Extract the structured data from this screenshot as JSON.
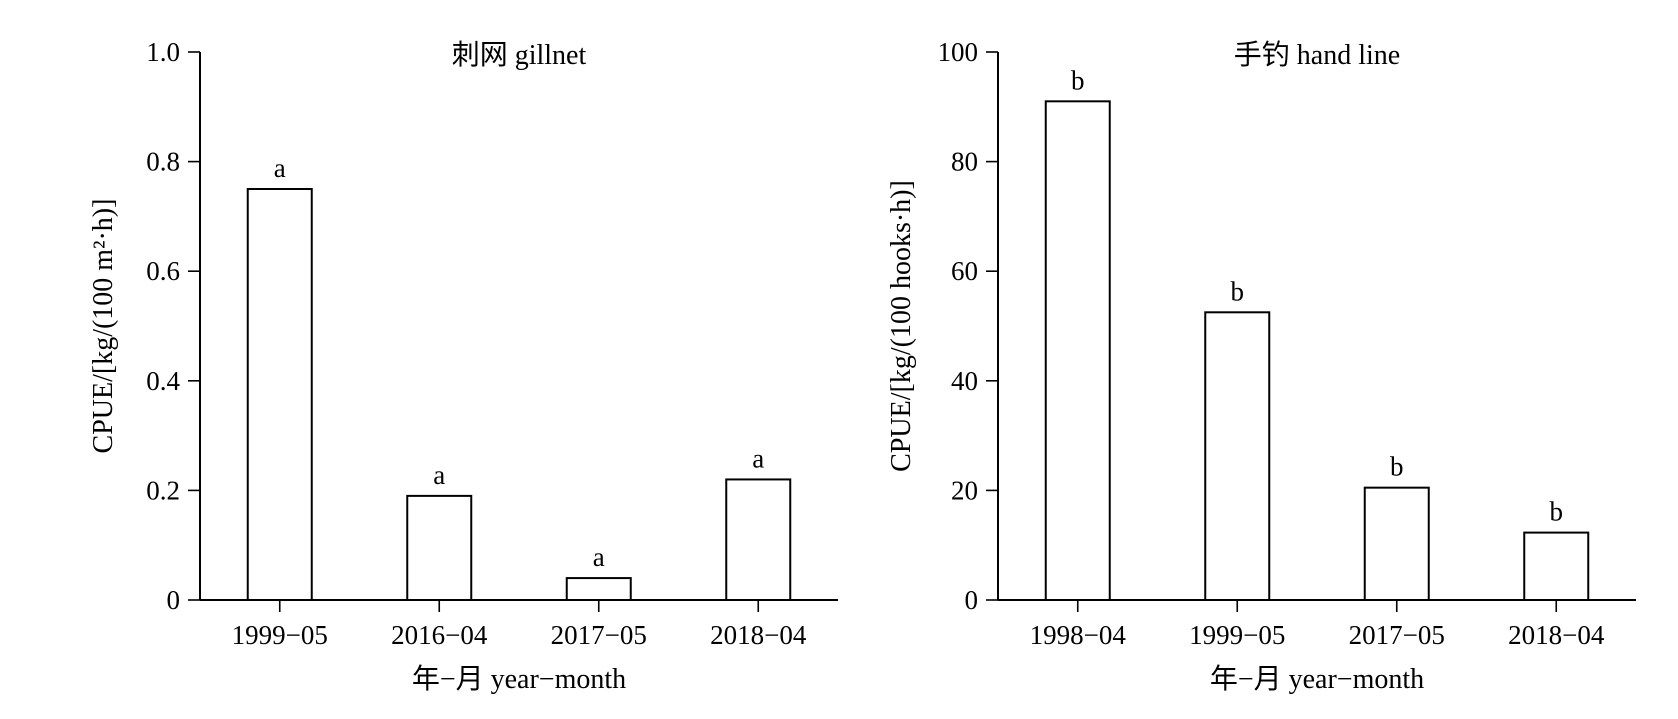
{
  "chart_data": [
    {
      "type": "bar",
      "title": "刺网 gillnet",
      "xlabel": "年−月 year−month",
      "ylabel": "CPUE/[kg/(100 m²·h)]",
      "categories": [
        "1999−05",
        "2016−04",
        "2017−05",
        "2018−04"
      ],
      "values": [
        0.75,
        0.19,
        0.04,
        0.22
      ],
      "value_labels": [
        "a",
        "a",
        "a",
        "a"
      ],
      "ylim": [
        0,
        1.0
      ],
      "yticks": [
        0,
        0.2,
        0.4,
        0.6,
        0.8,
        1.0
      ],
      "ytick_labels": [
        "0",
        "0.2",
        "0.4",
        "0.6",
        "0.8",
        "1.0"
      ],
      "grid": false
    },
    {
      "type": "bar",
      "title": "手钓 hand line",
      "xlabel": "年−月 year−month",
      "ylabel": "CPUE/[kg/(100 hooks·h)]",
      "categories": [
        "1998−04",
        "1999−05",
        "2017−05",
        "2018−04"
      ],
      "values": [
        91,
        52.5,
        20.5,
        12.3
      ],
      "value_labels": [
        "b",
        "b",
        "b",
        "b"
      ],
      "ylim": [
        0,
        100
      ],
      "yticks": [
        0,
        20,
        40,
        60,
        80,
        100
      ],
      "ytick_labels": [
        "0",
        "20",
        "40",
        "60",
        "80",
        "100"
      ],
      "grid": false
    }
  ]
}
